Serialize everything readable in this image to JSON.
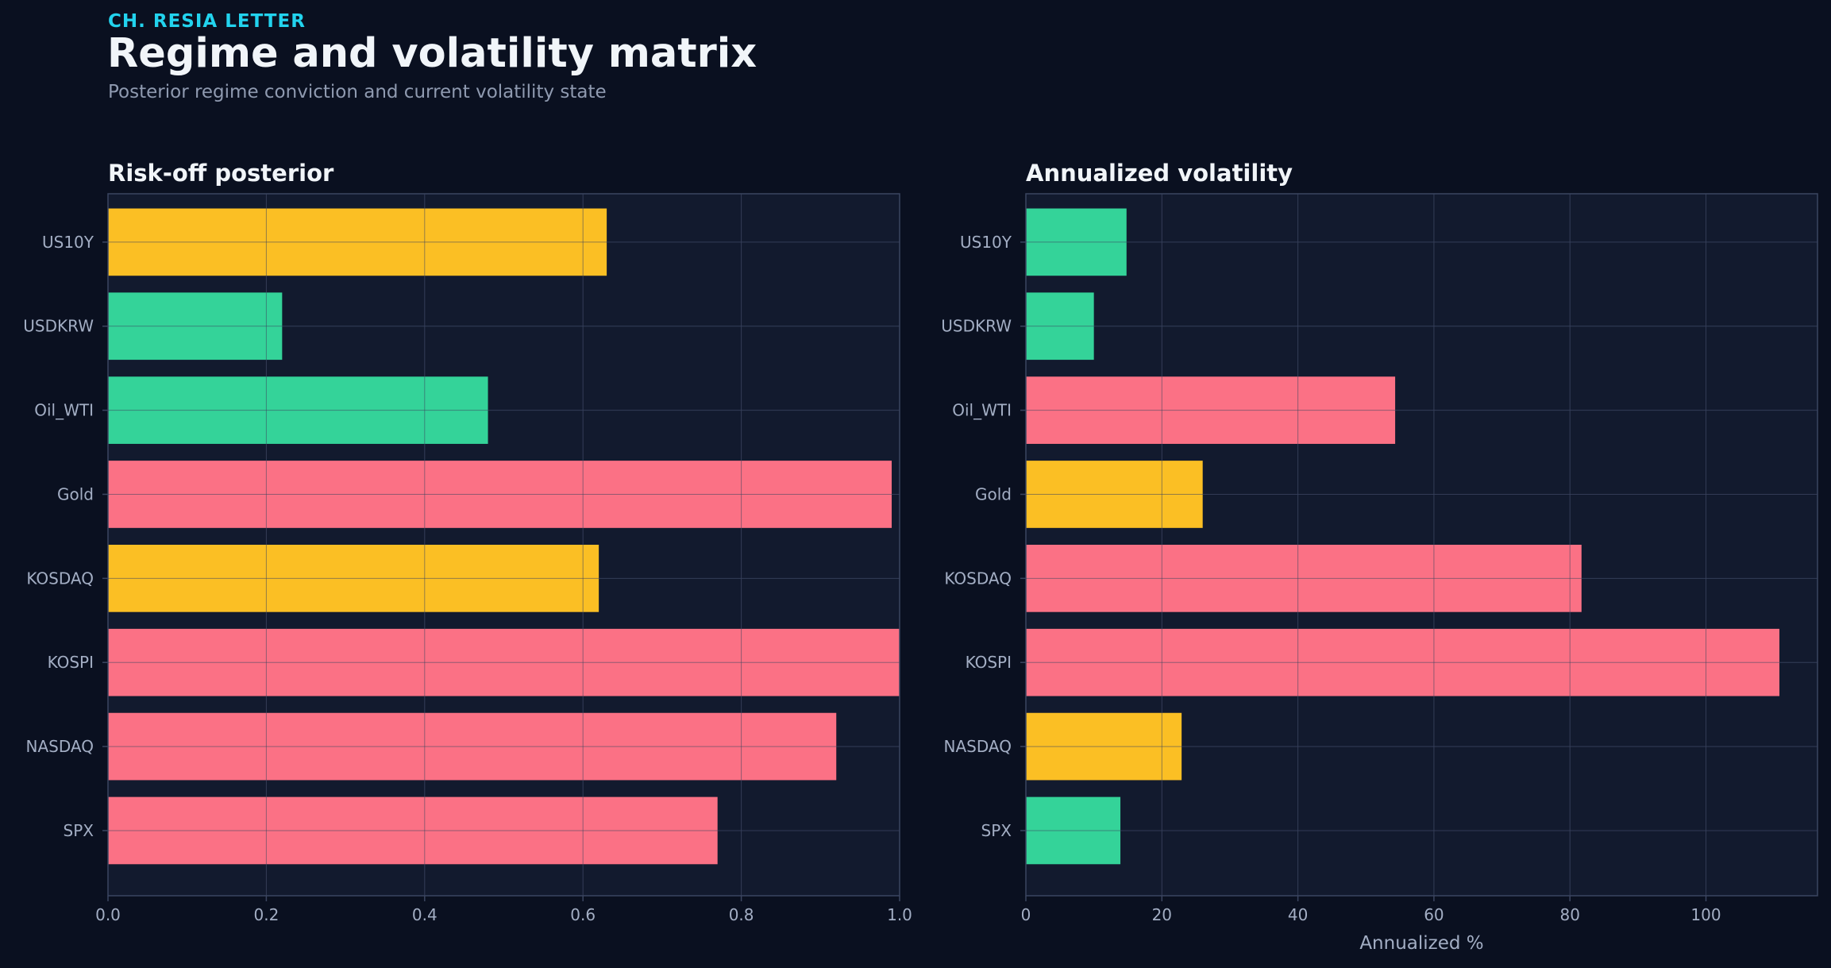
{
  "header": {
    "kicker": "CH. RESIA LETTER",
    "title": "Regime and volatility matrix",
    "subtitle": "Posterior regime conviction and current volatility state"
  },
  "colors": {
    "background": "#0a1020",
    "panel": "#121a2e",
    "frame": "#3b4560",
    "grid": "#27304a",
    "red": "#fb7185",
    "amber": "#fbbf24",
    "green": "#34d399",
    "title_text": "#f1f5f9",
    "tick_text": "#a3aec4"
  },
  "chart_data": [
    {
      "type": "bar",
      "orientation": "horizontal",
      "title": "Risk-off posterior",
      "xlabel": "",
      "ylabel": "",
      "categories": [
        "US10Y",
        "USDKRW",
        "Oil_WTI",
        "Gold",
        "KOSDAQ",
        "KOSPI",
        "NASDAQ",
        "SPX"
      ],
      "values": [
        0.63,
        0.22,
        0.48,
        0.99,
        0.62,
        1.0,
        0.92,
        0.77
      ],
      "bar_colors": [
        "amber",
        "green",
        "green",
        "red",
        "amber",
        "red",
        "red",
        "red"
      ],
      "xlim": [
        0,
        1.0
      ],
      "xticks": [
        0.0,
        0.2,
        0.4,
        0.6,
        0.8,
        1.0
      ],
      "xtick_labels": [
        "0.0",
        "0.2",
        "0.4",
        "0.6",
        "0.8",
        "1.0"
      ],
      "grid": true
    },
    {
      "type": "bar",
      "orientation": "horizontal",
      "title": "Annualized volatility",
      "xlabel": "Annualized %",
      "ylabel": "",
      "categories": [
        "US10Y",
        "USDKRW",
        "Oil_WTI",
        "Gold",
        "KOSDAQ",
        "KOSPI",
        "NASDAQ",
        "SPX"
      ],
      "values": [
        14.8,
        10.0,
        54.3,
        26.0,
        81.7,
        110.8,
        22.9,
        13.9
      ],
      "bar_colors": [
        "green",
        "green",
        "red",
        "amber",
        "red",
        "red",
        "amber",
        "green"
      ],
      "xlim": [
        0,
        116.4
      ],
      "xticks": [
        0,
        20,
        40,
        60,
        80,
        100
      ],
      "xtick_labels": [
        "0",
        "20",
        "40",
        "60",
        "80",
        "100"
      ],
      "grid": true
    }
  ]
}
